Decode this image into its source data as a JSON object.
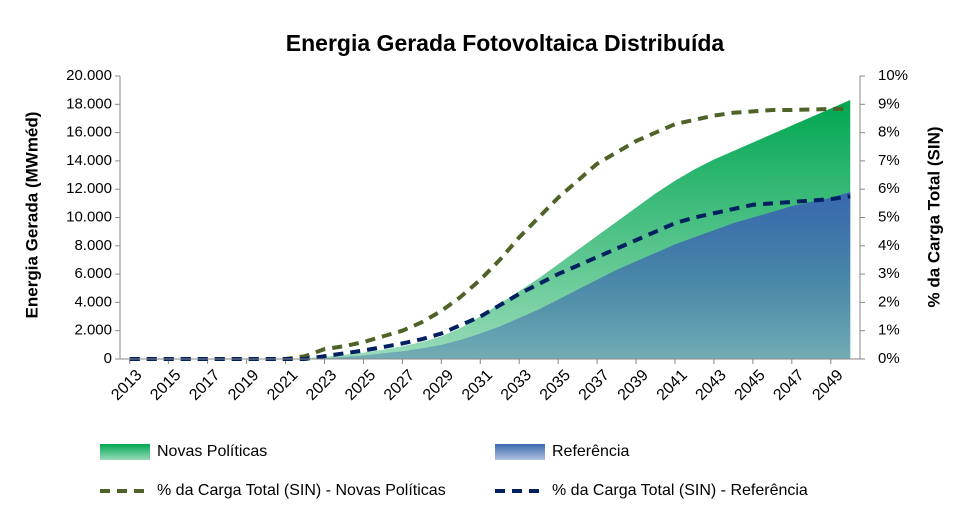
{
  "chart_data": {
    "type": "area",
    "title": "Energia Gerada Fotovoltaica Distribuída",
    "y_label": "Energia Gerada (MWméd)",
    "y2_label": "% da Carga Total (SIN)",
    "x": [
      2013,
      2014,
      2015,
      2016,
      2017,
      2018,
      2019,
      2020,
      2021,
      2022,
      2023,
      2024,
      2025,
      2026,
      2027,
      2028,
      2029,
      2030,
      2031,
      2032,
      2033,
      2034,
      2035,
      2036,
      2037,
      2038,
      2039,
      2040,
      2041,
      2042,
      2043,
      2044,
      2045,
      2046,
      2047,
      2048,
      2049,
      2050
    ],
    "xlim": [
      2012.5,
      2050.5
    ],
    "xticks": [
      2013,
      2015,
      2017,
      2019,
      2021,
      2023,
      2025,
      2027,
      2029,
      2031,
      2033,
      2035,
      2037,
      2039,
      2041,
      2043,
      2045,
      2047,
      2049
    ],
    "ylim": [
      0,
      20000
    ],
    "yticks": [
      0,
      {
        "value": 2000,
        "label": "2.000"
      },
      {
        "value": 4000,
        "label": "4.000"
      },
      {
        "value": 6000,
        "label": "6.000"
      },
      {
        "value": 8000,
        "label": "8.000"
      },
      {
        "value": 10000,
        "label": "10.000"
      },
      {
        "value": 12000,
        "label": "12.000"
      },
      {
        "value": 14000,
        "label": "14.000"
      },
      {
        "value": 16000,
        "label": "16.000"
      },
      {
        "value": 18000,
        "label": "18.000"
      },
      {
        "value": 20000,
        "label": "20.000"
      }
    ],
    "y2lim": [
      0,
      10
    ],
    "y2ticks": [
      {
        "value": 0,
        "label": "0%"
      },
      {
        "value": 1,
        "label": "1%"
      },
      {
        "value": 2,
        "label": "2%"
      },
      {
        "value": 3,
        "label": "3%"
      },
      {
        "value": 4,
        "label": "4%"
      },
      {
        "value": 5,
        "label": "5%"
      },
      {
        "value": 6,
        "label": "6%"
      },
      {
        "value": 7,
        "label": "7%"
      },
      {
        "value": 8,
        "label": "8%"
      },
      {
        "value": 9,
        "label": "9%"
      },
      {
        "value": 10,
        "label": "10%"
      }
    ],
    "series": [
      {
        "name": "Novas Políticas",
        "kind": "area",
        "color": "#00a651",
        "values": [
          0,
          0,
          0,
          0,
          0,
          0,
          0,
          0,
          0,
          50,
          150,
          300,
          450,
          650,
          900,
          1200,
          1600,
          2200,
          3000,
          3900,
          4800,
          5700,
          6700,
          7700,
          8700,
          9700,
          10700,
          11700,
          12600,
          13400,
          14100,
          14700,
          15300,
          15900,
          16500,
          17100,
          17700,
          18300
        ]
      },
      {
        "name": "Referência",
        "kind": "area",
        "color": "#3b68b0",
        "values": [
          0,
          0,
          0,
          0,
          0,
          0,
          0,
          0,
          0,
          0,
          50,
          150,
          250,
          400,
          550,
          750,
          1000,
          1350,
          1800,
          2300,
          2900,
          3500,
          4200,
          4900,
          5600,
          6300,
          6900,
          7500,
          8100,
          8600,
          9100,
          9600,
          10000,
          10400,
          10800,
          11100,
          11400,
          11800
        ]
      },
      {
        "name": "% da Carga Total (SIN) - Novas Políticas",
        "kind": "line",
        "axis": "y2",
        "color": "#4f6228",
        "values": [
          0,
          0,
          0,
          0,
          0,
          0,
          0,
          0,
          0,
          0.1,
          0.35,
          0.45,
          0.6,
          0.8,
          1.0,
          1.3,
          1.7,
          2.2,
          2.8,
          3.5,
          4.3,
          5.0,
          5.7,
          6.3,
          6.9,
          7.3,
          7.7,
          8.0,
          8.3,
          8.45,
          8.6,
          8.7,
          8.75,
          8.8,
          8.8,
          8.82,
          8.83,
          8.85
        ]
      },
      {
        "name": "% da Carga Total (SIN) - Referência",
        "kind": "line",
        "axis": "y2",
        "color": "#002060",
        "values": [
          0,
          0,
          0,
          0,
          0,
          0,
          0,
          0,
          0,
          0,
          0.1,
          0.2,
          0.3,
          0.42,
          0.55,
          0.7,
          0.9,
          1.2,
          1.5,
          1.9,
          2.3,
          2.65,
          3.0,
          3.3,
          3.6,
          3.9,
          4.2,
          4.5,
          4.8,
          5.0,
          5.15,
          5.3,
          5.45,
          5.5,
          5.55,
          5.6,
          5.65,
          5.75
        ]
      }
    ]
  }
}
